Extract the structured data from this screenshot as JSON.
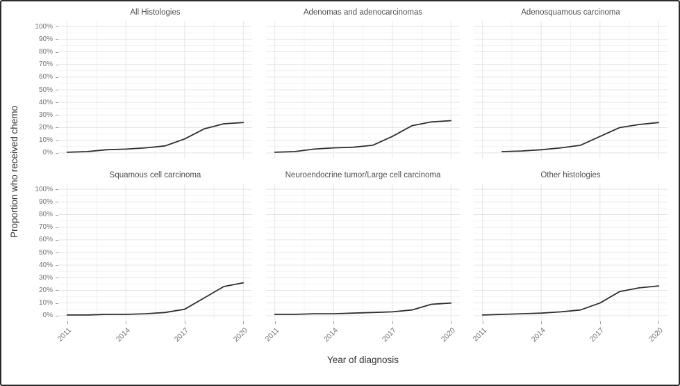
{
  "chart_data": {
    "type": "line",
    "title": "",
    "xlabel": "Year of diagnosis",
    "ylabel": "Proportion who received chemo",
    "x": [
      2011,
      2012,
      2013,
      2014,
      2015,
      2016,
      2017,
      2018,
      2019,
      2020
    ],
    "x_ticks": [
      "2011",
      "2014",
      "2017",
      "2020"
    ],
    "x_tick_years": [
      2011,
      2014,
      2017,
      2020
    ],
    "y_tick_labels": [
      "100%",
      "90%",
      "80%",
      "70%",
      "60%",
      "50%",
      "40%",
      "30%",
      "20%",
      "10%",
      "0%"
    ],
    "ylim": [
      0,
      100
    ],
    "y_unit": "percent",
    "legend": "none",
    "grid": "major every 10% and 3 years, minor every 5% and 1.5 years, light gray on white",
    "facets": [
      {
        "title": "All Histologies",
        "values": [
          0.5,
          1,
          2.5,
          3,
          4,
          5.5,
          11,
          19,
          23,
          24
        ]
      },
      {
        "title": "Adenomas and adenocarcinomas",
        "values": [
          0.5,
          1,
          3,
          4,
          4.5,
          6,
          13,
          21.5,
          24.5,
          25.5
        ]
      },
      {
        "title": "Adenosquamous carcinoma",
        "values": [
          null,
          1,
          1.5,
          2.5,
          4,
          6,
          13,
          20,
          22.5,
          24
        ]
      },
      {
        "title": "Squamous cell carcinoma",
        "values": [
          0.5,
          0.5,
          1,
          1,
          1.5,
          2.5,
          5,
          14,
          23,
          26
        ]
      },
      {
        "title": "Neuroendocrine tumor/Large cell carcinoma",
        "values": [
          1,
          1,
          1.5,
          1.5,
          2,
          2.5,
          3,
          4.5,
          9,
          10
        ]
      },
      {
        "title": "Other histologies",
        "values": [
          0.5,
          1,
          1.5,
          2,
          3,
          4.5,
          10,
          19,
          22,
          23.5
        ]
      }
    ],
    "style": {
      "line_color": "#2e2e2e",
      "grid_major_color": "#e4e4e4",
      "grid_minor_color": "#f2f2f2",
      "tick_label_color": "#6f6f6f",
      "facet_title_color": "#4f4f4f",
      "axis_title_color": "#333333",
      "background": "#ffffff",
      "figure_border_color": "#2b2b2b"
    }
  }
}
